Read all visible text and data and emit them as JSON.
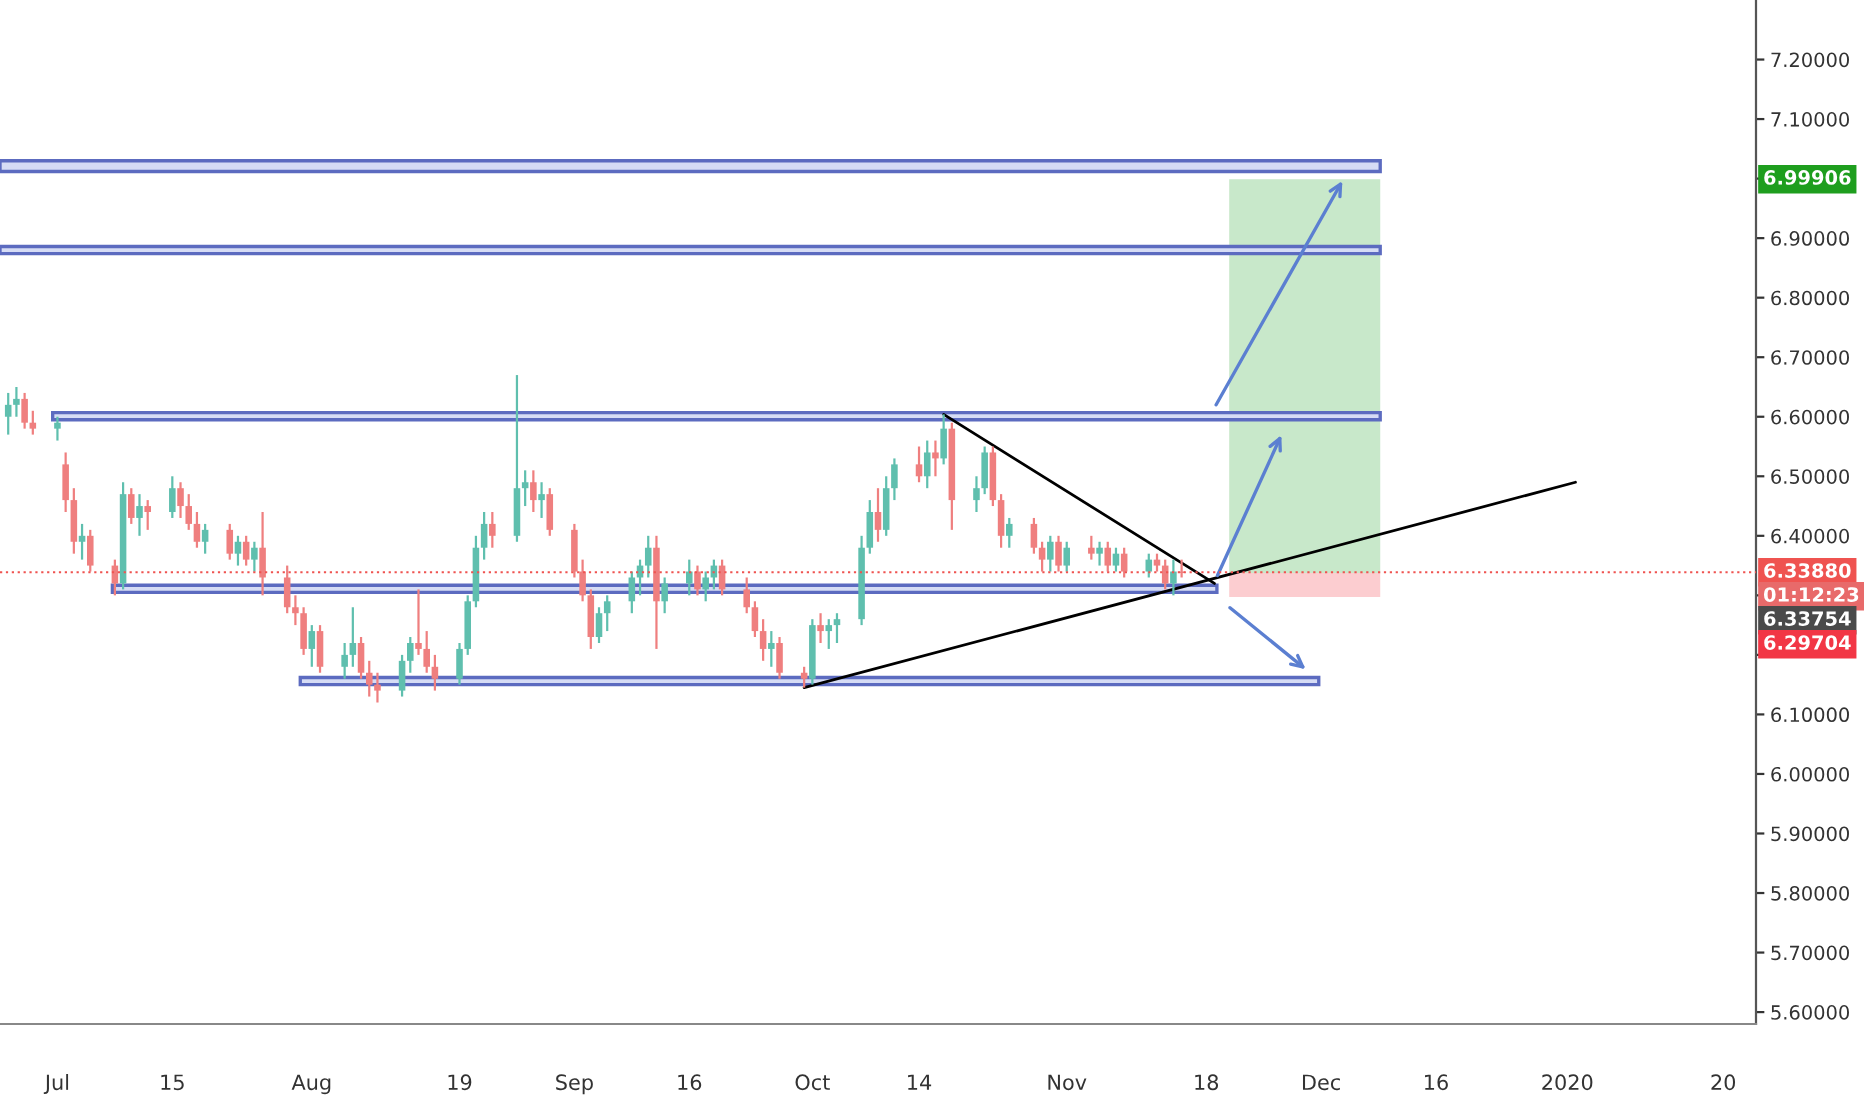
{
  "chart_data": {
    "type": "candlestick",
    "x": [
      "2019-06-25",
      "2019-06-26",
      "2019-06-27",
      "2019-06-28",
      "2019-07-01",
      "2019-07-02",
      "2019-07-03",
      "2019-07-04",
      "2019-07-05",
      "2019-07-08",
      "2019-07-09",
      "2019-07-10",
      "2019-07-11",
      "2019-07-12",
      "2019-07-15",
      "2019-07-16",
      "2019-07-17",
      "2019-07-18",
      "2019-07-19",
      "2019-07-22",
      "2019-07-23",
      "2019-07-24",
      "2019-07-25",
      "2019-07-26",
      "2019-07-29",
      "2019-07-30",
      "2019-07-31",
      "2019-08-01",
      "2019-08-02",
      "2019-08-05",
      "2019-08-06",
      "2019-08-07",
      "2019-08-08",
      "2019-08-09",
      "2019-08-12",
      "2019-08-13",
      "2019-08-14",
      "2019-08-15",
      "2019-08-16",
      "2019-08-19",
      "2019-08-20",
      "2019-08-21",
      "2019-08-22",
      "2019-08-23",
      "2019-08-26",
      "2019-08-27",
      "2019-08-28",
      "2019-08-29",
      "2019-08-30",
      "2019-09-02",
      "2019-09-03",
      "2019-09-04",
      "2019-09-05",
      "2019-09-06",
      "2019-09-09",
      "2019-09-10",
      "2019-09-11",
      "2019-09-12",
      "2019-09-13",
      "2019-09-16",
      "2019-09-17",
      "2019-09-18",
      "2019-09-19",
      "2019-09-20",
      "2019-09-23",
      "2019-09-24",
      "2019-09-25",
      "2019-09-26",
      "2019-09-27",
      "2019-09-30",
      "2019-10-01",
      "2019-10-02",
      "2019-10-03",
      "2019-10-04",
      "2019-10-07",
      "2019-10-08",
      "2019-10-09",
      "2019-10-10",
      "2019-10-11",
      "2019-10-14",
      "2019-10-15",
      "2019-10-16",
      "2019-10-17",
      "2019-10-18",
      "2019-10-21",
      "2019-10-22",
      "2019-10-23",
      "2019-10-24",
      "2019-10-25",
      "2019-10-28",
      "2019-10-29",
      "2019-10-30",
      "2019-10-31",
      "2019-11-01",
      "2019-11-04",
      "2019-11-05",
      "2019-11-06",
      "2019-11-07",
      "2019-11-08",
      "2019-11-11",
      "2019-11-12",
      "2019-11-13",
      "2019-11-14",
      "2019-11-15"
    ],
    "ohlc": [
      [
        6.6,
        6.64,
        6.57,
        6.62
      ],
      [
        6.62,
        6.65,
        6.6,
        6.63
      ],
      [
        6.63,
        6.64,
        6.58,
        6.59
      ],
      [
        6.59,
        6.61,
        6.57,
        6.58
      ],
      [
        6.58,
        6.6,
        6.56,
        6.59
      ],
      [
        6.52,
        6.54,
        6.44,
        6.46
      ],
      [
        6.46,
        6.48,
        6.37,
        6.39
      ],
      [
        6.39,
        6.42,
        6.36,
        6.4
      ],
      [
        6.4,
        6.41,
        6.34,
        6.35
      ],
      [
        6.35,
        6.36,
        6.3,
        6.32
      ],
      [
        6.32,
        6.49,
        6.31,
        6.47
      ],
      [
        6.47,
        6.48,
        6.42,
        6.43
      ],
      [
        6.43,
        6.47,
        6.4,
        6.45
      ],
      [
        6.45,
        6.46,
        6.41,
        6.44
      ],
      [
        6.44,
        6.5,
        6.43,
        6.48
      ],
      [
        6.48,
        6.49,
        6.43,
        6.45
      ],
      [
        6.45,
        6.47,
        6.41,
        6.42
      ],
      [
        6.42,
        6.44,
        6.38,
        6.39
      ],
      [
        6.39,
        6.42,
        6.37,
        6.41
      ],
      [
        6.41,
        6.42,
        6.36,
        6.37
      ],
      [
        6.37,
        6.4,
        6.35,
        6.39
      ],
      [
        6.39,
        6.4,
        6.35,
        6.36
      ],
      [
        6.36,
        6.39,
        6.34,
        6.38
      ],
      [
        6.38,
        6.44,
        6.3,
        6.33
      ],
      [
        6.33,
        6.35,
        6.27,
        6.28
      ],
      [
        6.28,
        6.3,
        6.25,
        6.27
      ],
      [
        6.27,
        6.28,
        6.2,
        6.21
      ],
      [
        6.21,
        6.25,
        6.18,
        6.24
      ],
      [
        6.24,
        6.25,
        6.17,
        6.18
      ],
      [
        6.18,
        6.22,
        6.16,
        6.2
      ],
      [
        6.2,
        6.28,
        6.18,
        6.22
      ],
      [
        6.22,
        6.23,
        6.16,
        6.17
      ],
      [
        6.17,
        6.19,
        6.13,
        6.15
      ],
      [
        6.15,
        6.17,
        6.12,
        6.14
      ],
      [
        6.14,
        6.2,
        6.13,
        6.19
      ],
      [
        6.19,
        6.23,
        6.17,
        6.22
      ],
      [
        6.22,
        6.31,
        6.2,
        6.21
      ],
      [
        6.21,
        6.24,
        6.17,
        6.18
      ],
      [
        6.18,
        6.2,
        6.14,
        6.16
      ],
      [
        6.16,
        6.22,
        6.15,
        6.21
      ],
      [
        6.21,
        6.3,
        6.2,
        6.29
      ],
      [
        6.29,
        6.4,
        6.28,
        6.38
      ],
      [
        6.38,
        6.44,
        6.36,
        6.42
      ],
      [
        6.42,
        6.44,
        6.38,
        6.4
      ],
      [
        6.4,
        6.67,
        6.39,
        6.48
      ],
      [
        6.48,
        6.51,
        6.45,
        6.49
      ],
      [
        6.49,
        6.51,
        6.44,
        6.46
      ],
      [
        6.46,
        6.49,
        6.43,
        6.47
      ],
      [
        6.47,
        6.48,
        6.4,
        6.41
      ],
      [
        6.41,
        6.42,
        6.33,
        6.34
      ],
      [
        6.34,
        6.36,
        6.29,
        6.3
      ],
      [
        6.3,
        6.31,
        6.21,
        6.23
      ],
      [
        6.23,
        6.28,
        6.22,
        6.27
      ],
      [
        6.27,
        6.3,
        6.24,
        6.29
      ],
      [
        6.29,
        6.34,
        6.27,
        6.33
      ],
      [
        6.33,
        6.36,
        6.3,
        6.35
      ],
      [
        6.35,
        6.4,
        6.33,
        6.38
      ],
      [
        6.38,
        6.4,
        6.21,
        6.29
      ],
      [
        6.29,
        6.33,
        6.27,
        6.32
      ],
      [
        6.32,
        6.36,
        6.3,
        6.34
      ],
      [
        6.34,
        6.35,
        6.3,
        6.31
      ],
      [
        6.31,
        6.34,
        6.29,
        6.33
      ],
      [
        6.33,
        6.36,
        6.31,
        6.35
      ],
      [
        6.35,
        6.36,
        6.3,
        6.31
      ],
      [
        6.31,
        6.33,
        6.27,
        6.28
      ],
      [
        6.28,
        6.29,
        6.23,
        6.24
      ],
      [
        6.24,
        6.26,
        6.19,
        6.21
      ],
      [
        6.21,
        6.24,
        6.18,
        6.22
      ],
      [
        6.22,
        6.23,
        6.16,
        6.17
      ],
      [
        6.17,
        6.18,
        6.145,
        6.16
      ],
      [
        6.16,
        6.26,
        6.15,
        6.25
      ],
      [
        6.25,
        6.27,
        6.22,
        6.24
      ],
      [
        6.24,
        6.26,
        6.21,
        6.25
      ],
      [
        6.25,
        6.27,
        6.22,
        6.26
      ],
      [
        6.26,
        6.4,
        6.25,
        6.38
      ],
      [
        6.38,
        6.46,
        6.37,
        6.44
      ],
      [
        6.44,
        6.48,
        6.39,
        6.41
      ],
      [
        6.41,
        6.5,
        6.4,
        6.48
      ],
      [
        6.48,
        6.53,
        6.46,
        6.52
      ],
      [
        6.52,
        6.55,
        6.49,
        6.5
      ],
      [
        6.5,
        6.56,
        6.48,
        6.54
      ],
      [
        6.54,
        6.56,
        6.5,
        6.53
      ],
      [
        6.53,
        6.604,
        6.52,
        6.58
      ],
      [
        6.58,
        6.59,
        6.41,
        6.46
      ],
      [
        6.46,
        6.5,
        6.44,
        6.48
      ],
      [
        6.48,
        6.55,
        6.47,
        6.54
      ],
      [
        6.54,
        6.55,
        6.45,
        6.46
      ],
      [
        6.46,
        6.47,
        6.38,
        6.4
      ],
      [
        6.4,
        6.43,
        6.38,
        6.42
      ],
      [
        6.42,
        6.43,
        6.37,
        6.38
      ],
      [
        6.38,
        6.39,
        6.34,
        6.36
      ],
      [
        6.36,
        6.4,
        6.34,
        6.39
      ],
      [
        6.39,
        6.4,
        6.34,
        6.35
      ],
      [
        6.35,
        6.39,
        6.34,
        6.38
      ],
      [
        6.38,
        6.4,
        6.36,
        6.37
      ],
      [
        6.37,
        6.39,
        6.35,
        6.38
      ],
      [
        6.38,
        6.39,
        6.34,
        6.35
      ],
      [
        6.35,
        6.38,
        6.34,
        6.37
      ],
      [
        6.37,
        6.38,
        6.33,
        6.34
      ],
      [
        6.34,
        6.37,
        6.33,
        6.36
      ],
      [
        6.36,
        6.37,
        6.34,
        6.35
      ],
      [
        6.35,
        6.36,
        6.31,
        6.32
      ],
      [
        6.32,
        6.36,
        6.3,
        6.34
      ],
      [
        6.34,
        6.36,
        6.33,
        6.3375
      ]
    ],
    "series": [
      {
        "type": "line",
        "color": "#000000",
        "x": [
          "2019-10-17",
          "2019-11-19"
        ],
        "values": [
          6.604,
          6.32
        ]
      },
      {
        "type": "line",
        "color": "#000000",
        "x": [
          "2019-09-30",
          "2020-01-02"
        ],
        "values": [
          6.145,
          6.49
        ]
      }
    ],
    "xlim": [
      "2019-06-24",
      "2020-01-24"
    ],
    "xticks": [
      {
        "value": "2019-07-01",
        "label": "Jul"
      },
      {
        "value": "2019-07-15",
        "label": "15"
      },
      {
        "value": "2019-08-01",
        "label": "Aug"
      },
      {
        "value": "2019-08-19",
        "label": "19"
      },
      {
        "value": "2019-09-02",
        "label": "Sep"
      },
      {
        "value": "2019-09-16",
        "label": "16"
      },
      {
        "value": "2019-10-01",
        "label": "Oct"
      },
      {
        "value": "2019-10-14",
        "label": "14"
      },
      {
        "value": "2019-11-01",
        "label": "Nov"
      },
      {
        "value": "2019-11-18",
        "label": "18"
      },
      {
        "value": "2019-12-02",
        "label": "Dec"
      },
      {
        "value": "2019-12-16",
        "label": "16"
      },
      {
        "value": "2020-01-01",
        "label": "2020"
      },
      {
        "value": "2020-01-20",
        "label": "20"
      }
    ],
    "ylim": [
      5.58,
      7.3
    ],
    "yticks": [
      {
        "value": 5.6,
        "label": "5.60000"
      },
      {
        "value": 5.7,
        "label": "5.70000"
      },
      {
        "value": 5.8,
        "label": "5.80000"
      },
      {
        "value": 5.9,
        "label": "5.90000"
      },
      {
        "value": 6.0,
        "label": "6.00000"
      },
      {
        "value": 6.1,
        "label": "6.10000"
      },
      {
        "value": 6.2,
        "label": null
      },
      {
        "value": 6.3,
        "label": null
      },
      {
        "value": 6.4,
        "label": "6.40000"
      },
      {
        "value": 6.5,
        "label": "6.50000"
      },
      {
        "value": 6.6,
        "label": "6.60000"
      },
      {
        "value": 6.7,
        "label": "6.70000"
      },
      {
        "value": 6.8,
        "label": "6.80000"
      },
      {
        "value": 6.9,
        "label": "6.90000"
      },
      {
        "value": 7.0,
        "label": null
      },
      {
        "value": 7.1,
        "label": "7.10000"
      },
      {
        "value": 7.2,
        "label": "7.20000"
      }
    ],
    "bands": [
      {
        "axis": "y",
        "from": 7.012,
        "to": 7.03,
        "color": "#5c6bc0"
      },
      {
        "axis": "y",
        "from": 6.874,
        "to": 6.886,
        "color": "#5c6bc0"
      },
      {
        "axis": "y",
        "from": 6.595,
        "to": 6.607,
        "color": "#5c6bc0"
      },
      {
        "axis": "y",
        "from": 6.305,
        "to": 6.317,
        "color": "#5c6bc0"
      },
      {
        "axis": "y",
        "from": 6.15,
        "to": 6.162,
        "color": "#5c6bc0"
      },
      {
        "axis": "y",
        "from": 6.33754,
        "to": 6.99906,
        "color": "#22a32a"
      },
      {
        "axis": "y",
        "from": 6.29704,
        "to": 6.33754,
        "color": "#f23645"
      }
    ],
    "ref_lines": [
      {
        "axis": "y",
        "value": 6.3388,
        "label": "6.33880",
        "color": "#ef5350",
        "line_style": "dotted"
      }
    ],
    "annotations": [
      "6.99906",
      "01:12:23",
      "6.33754",
      "6.29704"
    ],
    "grid": false
  }
}
